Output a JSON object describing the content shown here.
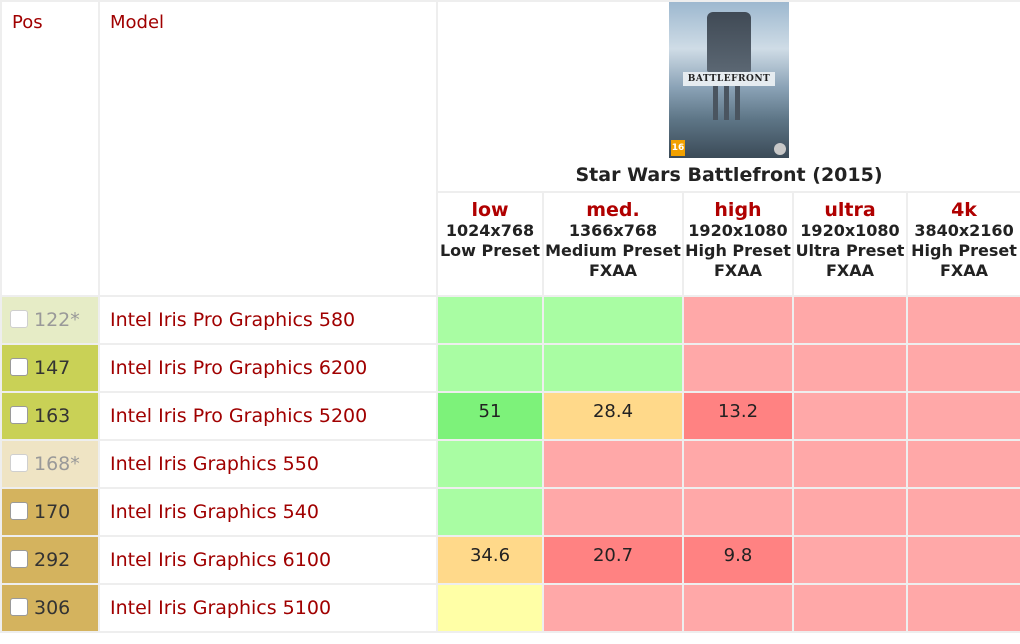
{
  "header": {
    "pos_label": "Pos",
    "model_label": "Model",
    "game": {
      "title": "Star Wars Battlefront",
      "year": "(2015)",
      "cover_logo_text": "BATTLEFRONT",
      "cover_rating": "16"
    },
    "settings": [
      {
        "level": "low",
        "resolution": "1024x768",
        "preset": "Low Preset",
        "aa": ""
      },
      {
        "level": "med.",
        "resolution": "1366x768",
        "preset": "Medium Preset",
        "aa": "FXAA"
      },
      {
        "level": "high",
        "resolution": "1920x1080",
        "preset": "High Preset",
        "aa": "FXAA"
      },
      {
        "level": "ultra",
        "resolution": "1920x1080",
        "preset": "Ultra Preset",
        "aa": "FXAA"
      },
      {
        "level": "4k",
        "resolution": "3840x2160",
        "preset": "High Preset",
        "aa": "FXAA"
      }
    ]
  },
  "rows": [
    {
      "pos": "122*",
      "model": "Intel Iris Pro Graphics 580",
      "pos_bg": "#e6ecc6",
      "faded": true,
      "values": [
        "",
        "",
        "",
        "",
        ""
      ],
      "colors": [
        "#a9fda3",
        "#a9fda3",
        "#ffa8a8",
        "#ffa8a8",
        "#ffa8a8"
      ]
    },
    {
      "pos": "147",
      "model": "Intel Iris Pro Graphics 6200",
      "pos_bg": "#c9d156",
      "faded": false,
      "values": [
        "",
        "",
        "",
        "",
        ""
      ],
      "colors": [
        "#a9fda3",
        "#a9fda3",
        "#ffa8a8",
        "#ffa8a8",
        "#ffa8a8"
      ]
    },
    {
      "pos": "163",
      "model": "Intel Iris Pro Graphics 5200",
      "pos_bg": "#c9d156",
      "faded": false,
      "values": [
        "51",
        "28.4",
        "13.2",
        "",
        ""
      ],
      "colors": [
        "#7df27a",
        "#ffd98a",
        "#ff8282",
        "#ffa8a8",
        "#ffa8a8"
      ]
    },
    {
      "pos": "168*",
      "model": "Intel Iris Graphics 550",
      "pos_bg": "#efe4c4",
      "faded": true,
      "values": [
        "",
        "",
        "",
        "",
        ""
      ],
      "colors": [
        "#a9fda3",
        "#ffa8a8",
        "#ffa8a8",
        "#ffa8a8",
        "#ffa8a8"
      ]
    },
    {
      "pos": "170",
      "model": "Intel Iris Graphics 540",
      "pos_bg": "#d4b35e",
      "faded": false,
      "values": [
        "",
        "",
        "",
        "",
        ""
      ],
      "colors": [
        "#a9fda3",
        "#ffa8a8",
        "#ffa8a8",
        "#ffa8a8",
        "#ffa8a8"
      ]
    },
    {
      "pos": "292",
      "model": "Intel Iris Graphics 6100",
      "pos_bg": "#d4b35e",
      "faded": false,
      "values": [
        "34.6",
        "20.7",
        "9.8",
        "",
        ""
      ],
      "colors": [
        "#ffd98a",
        "#ff8282",
        "#ff8282",
        "#ffa8a8",
        "#ffa8a8"
      ]
    },
    {
      "pos": "306",
      "model": "Intel Iris Graphics 5100",
      "pos_bg": "#d4b35e",
      "faded": false,
      "values": [
        "",
        "",
        "",
        "",
        ""
      ],
      "colors": [
        "#ffffa6",
        "#ffa8a8",
        "#ffa8a8",
        "#ffa8a8",
        "#ffa8a8"
      ]
    }
  ]
}
